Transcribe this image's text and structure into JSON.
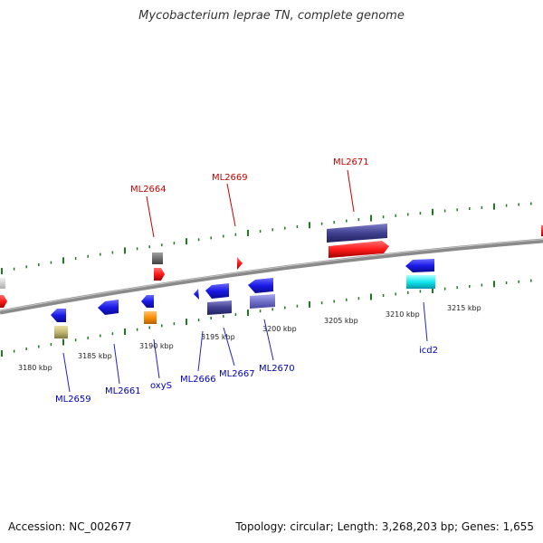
{
  "title": "Mycobacterium leprae TN, complete genome",
  "footer": {
    "accession": "Accession: NC_002677",
    "summary": "Topology: circular; Length: 3,268,203 bp; Genes: 1,655"
  },
  "colors": {
    "backbone": "#8a8a8a",
    "tick": "#1f7a1f",
    "top_label": "#cc0000",
    "bottom_label": "#0000bb",
    "leader_top": "#cc0000",
    "leader_bottom": "#2222cc"
  },
  "scale_labels": [
    "3180 kbp",
    "3185 kbp",
    "3190 kbp",
    "3195 kbp",
    "3200 kbp",
    "3205 kbp",
    "3210 kbp",
    "3215 kbp"
  ],
  "labels_top": [
    "ML2664",
    "ML2669",
    "ML2671"
  ],
  "labels_bottom": [
    "ML2659",
    "ML2661",
    "oxyS",
    "ML2666",
    "ML2667",
    "ML2670",
    "icd2"
  ]
}
